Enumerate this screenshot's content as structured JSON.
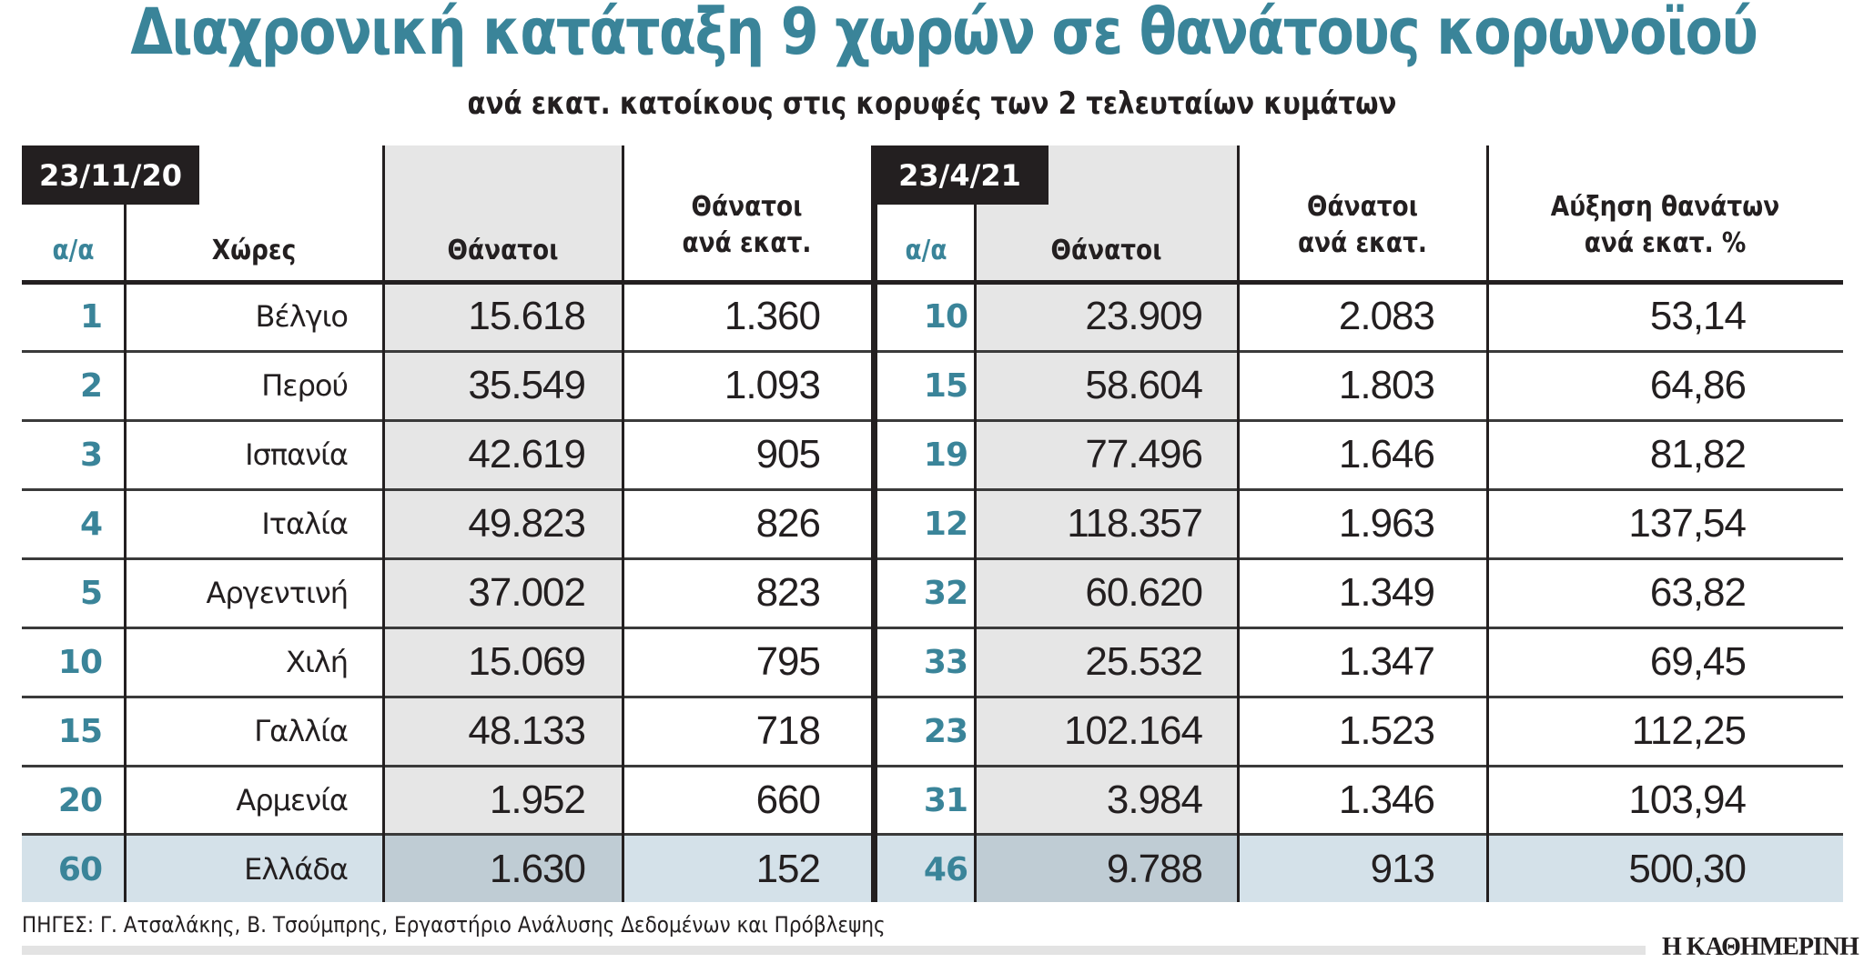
{
  "title": "Διαχρονική κατάταξη 9 χωρών σε θανάτους κορωνοϊού",
  "subtitle": "ανά εκατ. κατοίκους στις κορυφές των 2 τελευταίων κυμάτων",
  "colors": {
    "accent_teal": "#3a8499",
    "dark": "#231f20",
    "shade": "#e6e6e6",
    "highlight_row": "#d4e1e9",
    "highlight_shade": "#bfccd4"
  },
  "headers": {
    "date1": "23/11/20",
    "date2": "23/4/21",
    "rank1": "α/α",
    "countries": "Χώρες",
    "deaths1": "Θάνατοι",
    "per_million1": [
      "Θάνατοι",
      "ανά εκατ."
    ],
    "rank2": "α/α",
    "deaths2": "Θάνατοι",
    "per_million2": [
      "Θάνατοι",
      "ανά εκατ."
    ],
    "increase": [
      "Αύξηση θανάτων",
      "ανά εκατ. %"
    ]
  },
  "rows": [
    {
      "rank1": "1",
      "country": "Βέλγιο",
      "deaths1": "15.618",
      "pm1": "1.360",
      "rank2": "10",
      "deaths2": "23.909",
      "pm2": "2.083",
      "increase": "53,14"
    },
    {
      "rank1": "2",
      "country": "Περού",
      "deaths1": "35.549",
      "pm1": "1.093",
      "rank2": "15",
      "deaths2": "58.604",
      "pm2": "1.803",
      "increase": "64,86"
    },
    {
      "rank1": "3",
      "country": "Ισπανία",
      "deaths1": "42.619",
      "pm1": "905",
      "rank2": "19",
      "deaths2": "77.496",
      "pm2": "1.646",
      "increase": "81,82"
    },
    {
      "rank1": "4",
      "country": "Ιταλία",
      "deaths1": "49.823",
      "pm1": "826",
      "rank2": "12",
      "deaths2": "118.357",
      "pm2": "1.963",
      "increase": "137,54"
    },
    {
      "rank1": "5",
      "country": "Αργεντινή",
      "deaths1": "37.002",
      "pm1": "823",
      "rank2": "32",
      "deaths2": "60.620",
      "pm2": "1.349",
      "increase": "63,82"
    },
    {
      "rank1": "10",
      "country": "Χιλή",
      "deaths1": "15.069",
      "pm1": "795",
      "rank2": "33",
      "deaths2": "25.532",
      "pm2": "1.347",
      "increase": "69,45"
    },
    {
      "rank1": "15",
      "country": "Γαλλία",
      "deaths1": "48.133",
      "pm1": "718",
      "rank2": "23",
      "deaths2": "102.164",
      "pm2": "1.523",
      "increase": "112,25"
    },
    {
      "rank1": "20",
      "country": "Αρμενία",
      "deaths1": "1.952",
      "pm1": "660",
      "rank2": "31",
      "deaths2": "3.984",
      "pm2": "1.346",
      "increase": "103,94"
    },
    {
      "rank1": "60",
      "country": "Ελλάδα",
      "deaths1": "1.630",
      "pm1": "152",
      "rank2": "46",
      "deaths2": "9.788",
      "pm2": "913",
      "increase": "500,30",
      "highlight": true
    }
  ],
  "source": "ΠΗΓΕΣ: Γ. Ατσαλάκης, Β. Τσούμπρης, Εργαστήριο Ανάλυσης Δεδομένων και Πρόβλεψης",
  "logo": "Η ΚΑΘΗΜΕΡΙΝΗ"
}
